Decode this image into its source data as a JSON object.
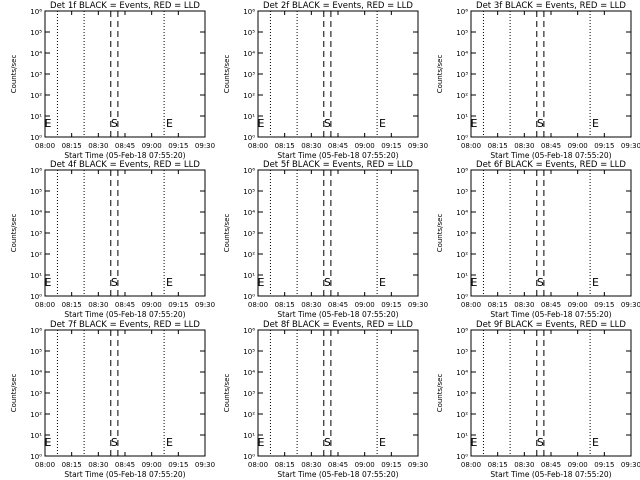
{
  "chart_data": [
    {
      "type": "line",
      "title": "Det 1f BLACK = Events, RED = LLD",
      "xlabel": "Start Time (05-Feb-18 07:55:20)",
      "ylabel": "Counts/sec",
      "x_ticks": [
        "08:00",
        "08:15",
        "08:30",
        "08:45",
        "09:00",
        "09:15",
        "09:30"
      ],
      "y_ticks": [
        "10⁰",
        "10¹",
        "10²",
        "10³",
        "10⁴",
        "10⁵",
        "10⁶"
      ],
      "y_scale": "log",
      "ylim": [
        1,
        1000000
      ],
      "xlim": [
        "08:00",
        "09:30"
      ],
      "dotted_lines": [
        "08:07",
        "08:22",
        "09:07",
        "09:30"
      ],
      "dashed_lines": [
        "08:37",
        "08:41"
      ],
      "markers": [
        {
          "label": "E",
          "x": "08:00"
        },
        {
          "label": "S",
          "x": "08:39"
        },
        {
          "label": "E",
          "x": "09:10"
        }
      ],
      "grid": false
    },
    {
      "type": "line",
      "title": "Det 2f BLACK = Events, RED = LLD",
      "xlabel": "Start Time (05-Feb-18 07:55:20)",
      "ylabel": "Counts/sec",
      "x_ticks": [
        "08:00",
        "08:15",
        "08:30",
        "08:45",
        "09:00",
        "09:15",
        "09:30"
      ],
      "y_ticks": [
        "10⁰",
        "10¹",
        "10²",
        "10³",
        "10⁴",
        "10⁵",
        "10⁶"
      ],
      "y_scale": "log",
      "ylim": [
        1,
        1000000
      ],
      "xlim": [
        "08:00",
        "09:30"
      ],
      "dotted_lines": [
        "08:07",
        "08:22",
        "09:07",
        "09:30"
      ],
      "dashed_lines": [
        "08:37",
        "08:41"
      ],
      "markers": [
        {
          "label": "E",
          "x": "08:00"
        },
        {
          "label": "S",
          "x": "08:39"
        },
        {
          "label": "E",
          "x": "09:10"
        }
      ],
      "grid": false
    },
    {
      "type": "line",
      "title": "Det 3f BLACK = Events, RED = LLD",
      "xlabel": "Start Time (05-Feb-18 07:55:20)",
      "ylabel": "Counts/sec",
      "x_ticks": [
        "08:00",
        "08:15",
        "08:30",
        "08:45",
        "09:00",
        "09:15",
        "09:30"
      ],
      "y_ticks": [
        "10⁰",
        "10¹",
        "10²",
        "10³",
        "10⁴",
        "10⁵",
        "10⁶"
      ],
      "y_scale": "log",
      "ylim": [
        1,
        1000000
      ],
      "xlim": [
        "08:00",
        "09:30"
      ],
      "dotted_lines": [
        "08:07",
        "08:22",
        "09:07",
        "09:30"
      ],
      "dashed_lines": [
        "08:37",
        "08:41"
      ],
      "markers": [
        {
          "label": "E",
          "x": "08:00"
        },
        {
          "label": "S",
          "x": "08:39"
        },
        {
          "label": "E",
          "x": "09:10"
        }
      ],
      "grid": false
    },
    {
      "type": "line",
      "title": "Det 4f BLACK = Events, RED = LLD",
      "xlabel": "Start Time (05-Feb-18 07:55:20)",
      "ylabel": "Counts/sec",
      "x_ticks": [
        "08:00",
        "08:15",
        "08:30",
        "08:45",
        "09:00",
        "09:15",
        "09:30"
      ],
      "y_ticks": [
        "10⁰",
        "10¹",
        "10²",
        "10³",
        "10⁴",
        "10⁵",
        "10⁶"
      ],
      "y_scale": "log",
      "ylim": [
        1,
        1000000
      ],
      "xlim": [
        "08:00",
        "09:30"
      ],
      "dotted_lines": [
        "08:07",
        "08:22",
        "09:07",
        "09:30"
      ],
      "dashed_lines": [
        "08:37",
        "08:41"
      ],
      "markers": [
        {
          "label": "E",
          "x": "08:00"
        },
        {
          "label": "S",
          "x": "08:39"
        },
        {
          "label": "E",
          "x": "09:10"
        }
      ],
      "grid": false
    },
    {
      "type": "line",
      "title": "Det 5f BLACK = Events, RED = LLD",
      "xlabel": "Start Time (05-Feb-18 07:55:20)",
      "ylabel": "Counts/sec",
      "x_ticks": [
        "08:00",
        "08:15",
        "08:30",
        "08:45",
        "09:00",
        "09:15",
        "09:30"
      ],
      "y_ticks": [
        "10⁰",
        "10¹",
        "10²",
        "10³",
        "10⁴",
        "10⁵",
        "10⁶"
      ],
      "y_scale": "log",
      "ylim": [
        1,
        1000000
      ],
      "xlim": [
        "08:00",
        "09:30"
      ],
      "dotted_lines": [
        "08:07",
        "08:22",
        "09:07",
        "09:30"
      ],
      "dashed_lines": [
        "08:37",
        "08:41"
      ],
      "markers": [
        {
          "label": "E",
          "x": "08:00"
        },
        {
          "label": "S",
          "x": "08:39"
        },
        {
          "label": "E",
          "x": "09:10"
        }
      ],
      "grid": false
    },
    {
      "type": "line",
      "title": "Det 6f BLACK = Events, RED = LLD",
      "xlabel": "Start Time (05-Feb-18 07:55:20)",
      "ylabel": "Counts/sec",
      "x_ticks": [
        "08:00",
        "08:15",
        "08:30",
        "08:45",
        "09:00",
        "09:15",
        "09:30"
      ],
      "y_ticks": [
        "10⁰",
        "10¹",
        "10²",
        "10³",
        "10⁴",
        "10⁵",
        "10⁶"
      ],
      "y_scale": "log",
      "ylim": [
        1,
        1000000
      ],
      "xlim": [
        "08:00",
        "09:30"
      ],
      "dotted_lines": [
        "08:07",
        "08:22",
        "09:07",
        "09:30"
      ],
      "dashed_lines": [
        "08:37",
        "08:41"
      ],
      "markers": [
        {
          "label": "E",
          "x": "08:00"
        },
        {
          "label": "S",
          "x": "08:39"
        },
        {
          "label": "E",
          "x": "09:10"
        }
      ],
      "grid": false
    },
    {
      "type": "line",
      "title": "Det 7f BLACK = Events, RED = LLD",
      "xlabel": "Start Time (05-Feb-18 07:55:20)",
      "ylabel": "Counts/sec",
      "x_ticks": [
        "08:00",
        "08:15",
        "08:30",
        "08:45",
        "09:00",
        "09:15",
        "09:30"
      ],
      "y_ticks": [
        "10⁰",
        "10¹",
        "10²",
        "10³",
        "10⁴",
        "10⁵",
        "10⁶"
      ],
      "y_scale": "log",
      "ylim": [
        1,
        1000000
      ],
      "xlim": [
        "08:00",
        "09:30"
      ],
      "dotted_lines": [
        "08:07",
        "08:22",
        "09:07",
        "09:30"
      ],
      "dashed_lines": [
        "08:37",
        "08:41"
      ],
      "markers": [
        {
          "label": "E",
          "x": "08:00"
        },
        {
          "label": "S",
          "x": "08:39"
        },
        {
          "label": "E",
          "x": "09:10"
        }
      ],
      "grid": false
    },
    {
      "type": "line",
      "title": "Det 8f BLACK = Events, RED = LLD",
      "xlabel": "Start Time (05-Feb-18 07:55:20)",
      "ylabel": "Counts/sec",
      "x_ticks": [
        "08:00",
        "08:15",
        "08:30",
        "08:45",
        "09:00",
        "09:15",
        "09:30"
      ],
      "y_ticks": [
        "10⁰",
        "10¹",
        "10²",
        "10³",
        "10⁴",
        "10⁵",
        "10⁶"
      ],
      "y_scale": "log",
      "ylim": [
        1,
        1000000
      ],
      "xlim": [
        "08:00",
        "09:30"
      ],
      "dotted_lines": [
        "08:07",
        "08:22",
        "09:07",
        "09:30"
      ],
      "dashed_lines": [
        "08:37",
        "08:41"
      ],
      "markers": [
        {
          "label": "E",
          "x": "08:00"
        },
        {
          "label": "S",
          "x": "08:39"
        },
        {
          "label": "E",
          "x": "09:10"
        }
      ],
      "grid": false
    },
    {
      "type": "line",
      "title": "Det 9f BLACK = Events, RED = LLD",
      "xlabel": "Start Time (05-Feb-18 07:55:20)",
      "ylabel": "Counts/sec",
      "x_ticks": [
        "08:00",
        "08:15",
        "08:30",
        "08:45",
        "09:00",
        "09:15",
        "09:30"
      ],
      "y_ticks": [
        "10⁰",
        "10¹",
        "10²",
        "10³",
        "10⁴",
        "10⁵",
        "10⁶"
      ],
      "y_scale": "log",
      "ylim": [
        1,
        1000000
      ],
      "xlim": [
        "08:00",
        "09:30"
      ],
      "dotted_lines": [
        "08:07",
        "08:22",
        "09:07",
        "09:30"
      ],
      "dashed_lines": [
        "08:37",
        "08:41"
      ],
      "markers": [
        {
          "label": "E",
          "x": "08:00"
        },
        {
          "label": "S",
          "x": "08:39"
        },
        {
          "label": "E",
          "x": "09:10"
        }
      ],
      "grid": false
    }
  ]
}
